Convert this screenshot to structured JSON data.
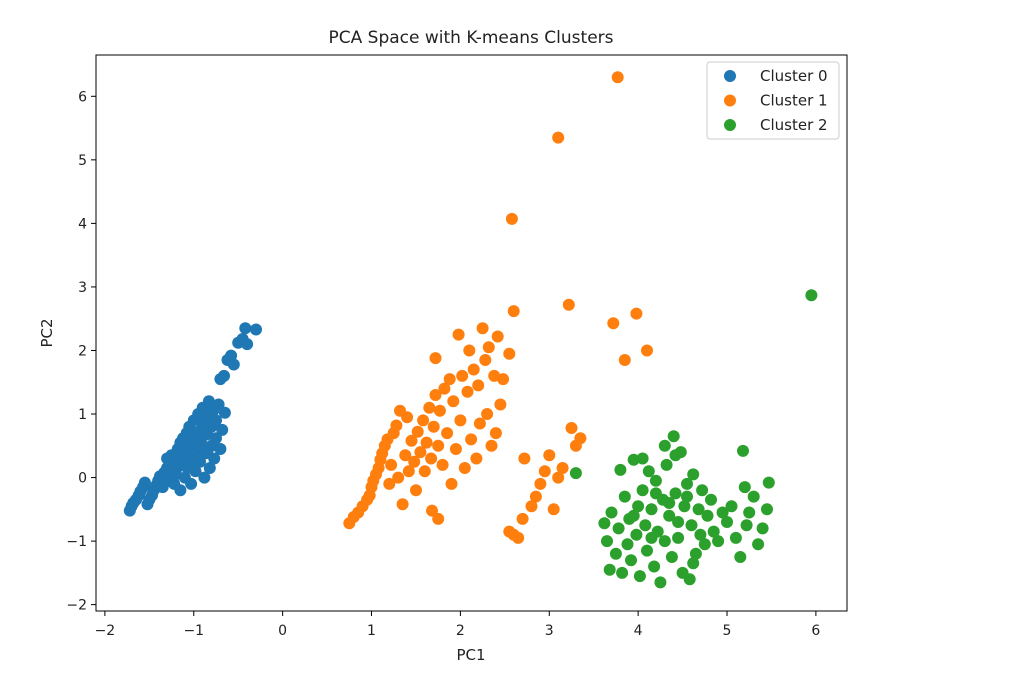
{
  "chart_data": {
    "type": "scatter",
    "title": "PCA Space with K-means Clusters",
    "xlabel": "PC1",
    "ylabel": "PC2",
    "xlim": [
      -2.1,
      6.35
    ],
    "ylim": [
      -2.1,
      6.65
    ],
    "xticks": [
      -2,
      -1,
      0,
      1,
      2,
      3,
      4,
      5,
      6
    ],
    "yticks": [
      -2,
      -1,
      0,
      1,
      2,
      3,
      4,
      5,
      6
    ],
    "xtick_labels": [
      "−2",
      "−1",
      "0",
      "1",
      "2",
      "3",
      "4",
      "5",
      "6"
    ],
    "ytick_labels": [
      "−2",
      "−1",
      "0",
      "1",
      "2",
      "3",
      "4",
      "5",
      "6"
    ],
    "grid": false,
    "legend_position": "top-right",
    "series": [
      {
        "name": "Cluster 0",
        "color": "#1f77b4",
        "points": [
          [
            -1.72,
            -0.52
          ],
          [
            -1.7,
            -0.45
          ],
          [
            -1.68,
            -0.4
          ],
          [
            -1.65,
            -0.35
          ],
          [
            -1.62,
            -0.28
          ],
          [
            -1.6,
            -0.22
          ],
          [
            -1.57,
            -0.15
          ],
          [
            -1.55,
            -0.08
          ],
          [
            -1.52,
            -0.42
          ],
          [
            -1.5,
            -0.35
          ],
          [
            -1.47,
            -0.28
          ],
          [
            -1.45,
            -0.2
          ],
          [
            -1.42,
            -0.12
          ],
          [
            -1.4,
            -0.05
          ],
          [
            -1.38,
            0.02
          ],
          [
            -1.35,
            -0.15
          ],
          [
            -1.33,
            0.08
          ],
          [
            -1.3,
            0.15
          ],
          [
            -1.28,
            -0.05
          ],
          [
            -1.27,
            0.22
          ],
          [
            -1.25,
            0.1
          ],
          [
            -1.23,
            0.3
          ],
          [
            -1.22,
            -0.1
          ],
          [
            -1.2,
            0.38
          ],
          [
            -1.2,
            0.05
          ],
          [
            -1.18,
            0.45
          ],
          [
            -1.17,
            0.18
          ],
          [
            -1.15,
            0.55
          ],
          [
            -1.15,
            -0.2
          ],
          [
            -1.13,
            0.28
          ],
          [
            -1.12,
            0.62
          ],
          [
            -1.1,
            0.0
          ],
          [
            -1.1,
            0.4
          ],
          [
            -1.08,
            0.7
          ],
          [
            -1.07,
            0.15
          ],
          [
            -1.05,
            0.5
          ],
          [
            -1.05,
            0.8
          ],
          [
            -1.03,
            -0.1
          ],
          [
            -1.02,
            0.3
          ],
          [
            -1.0,
            0.6
          ],
          [
            -1.0,
            0.9
          ],
          [
            -0.98,
            0.1
          ],
          [
            -0.97,
            0.45
          ],
          [
            -0.95,
            0.72
          ],
          [
            -0.95,
            1.0
          ],
          [
            -0.93,
            0.25
          ],
          [
            -0.92,
            0.55
          ],
          [
            -0.9,
            0.85
          ],
          [
            -0.9,
            1.1
          ],
          [
            -0.88,
            0.0
          ],
          [
            -0.87,
            0.38
          ],
          [
            -0.85,
            0.68
          ],
          [
            -0.85,
            0.95
          ],
          [
            -0.83,
            1.2
          ],
          [
            -0.82,
            0.15
          ],
          [
            -0.8,
            0.5
          ],
          [
            -0.8,
            0.8
          ],
          [
            -0.78,
            1.05
          ],
          [
            -0.77,
            0.3
          ],
          [
            -0.75,
            0.62
          ],
          [
            -0.75,
            0.9
          ],
          [
            -0.72,
            1.15
          ],
          [
            -0.7,
            0.45
          ],
          [
            -0.68,
            0.75
          ],
          [
            -0.65,
            1.02
          ],
          [
            -0.7,
            1.55
          ],
          [
            -0.66,
            1.6
          ],
          [
            -0.62,
            1.85
          ],
          [
            -0.58,
            1.92
          ],
          [
            -0.55,
            1.78
          ],
          [
            -0.5,
            2.12
          ],
          [
            -0.45,
            2.18
          ],
          [
            -0.42,
            2.35
          ],
          [
            -0.4,
            2.1
          ],
          [
            -0.3,
            2.33
          ],
          [
            -1.25,
            0.35
          ],
          [
            -1.15,
            0.25
          ],
          [
            -1.05,
            0.2
          ],
          [
            -0.95,
            0.5
          ],
          [
            -1.0,
            0.35
          ],
          [
            -1.1,
            0.6
          ],
          [
            -0.9,
            0.65
          ],
          [
            -1.2,
            0.2
          ],
          [
            -1.3,
            0.3
          ],
          [
            -0.85,
            0.4
          ]
        ]
      },
      {
        "name": "Cluster 1",
        "color": "#ff7f0e",
        "points": [
          [
            0.75,
            -0.72
          ],
          [
            0.8,
            -0.62
          ],
          [
            0.85,
            -0.55
          ],
          [
            0.9,
            -0.45
          ],
          [
            0.95,
            -0.35
          ],
          [
            0.98,
            -0.28
          ],
          [
            1.0,
            -0.15
          ],
          [
            1.02,
            -0.05
          ],
          [
            1.05,
            0.05
          ],
          [
            1.08,
            0.15
          ],
          [
            1.1,
            0.28
          ],
          [
            1.12,
            0.38
          ],
          [
            1.15,
            0.5
          ],
          [
            1.18,
            0.6
          ],
          [
            1.2,
            -0.1
          ],
          [
            1.22,
            0.2
          ],
          [
            1.25,
            0.7
          ],
          [
            1.28,
            0.82
          ],
          [
            1.3,
            0.0
          ],
          [
            1.32,
            1.05
          ],
          [
            1.35,
            -0.42
          ],
          [
            1.38,
            0.35
          ],
          [
            1.4,
            0.95
          ],
          [
            1.42,
            0.1
          ],
          [
            1.45,
            0.58
          ],
          [
            1.48,
            0.25
          ],
          [
            1.5,
            -0.2
          ],
          [
            1.52,
            0.72
          ],
          [
            1.55,
            0.4
          ],
          [
            1.58,
            0.9
          ],
          [
            1.6,
            0.1
          ],
          [
            1.62,
            0.55
          ],
          [
            1.65,
            1.1
          ],
          [
            1.67,
            0.3
          ],
          [
            1.68,
            -0.52
          ],
          [
            1.7,
            0.8
          ],
          [
            1.72,
            1.3
          ],
          [
            1.75,
            -0.65
          ],
          [
            1.75,
            0.5
          ],
          [
            1.77,
            1.05
          ],
          [
            1.8,
            0.2
          ],
          [
            1.82,
            1.4
          ],
          [
            1.85,
            0.7
          ],
          [
            1.88,
            1.55
          ],
          [
            1.9,
            -0.1
          ],
          [
            1.92,
            1.2
          ],
          [
            1.95,
            0.45
          ],
          [
            1.98,
            2.25
          ],
          [
            2.0,
            0.9
          ],
          [
            2.02,
            1.6
          ],
          [
            2.05,
            0.15
          ],
          [
            2.08,
            1.35
          ],
          [
            2.1,
            2.0
          ],
          [
            2.12,
            0.6
          ],
          [
            2.15,
            1.7
          ],
          [
            2.18,
            0.3
          ],
          [
            2.2,
            1.45
          ],
          [
            2.22,
            0.85
          ],
          [
            2.25,
            2.35
          ],
          [
            2.28,
            1.85
          ],
          [
            2.3,
            1.0
          ],
          [
            2.32,
            2.05
          ],
          [
            2.35,
            0.5
          ],
          [
            2.38,
            1.6
          ],
          [
            2.4,
            0.7
          ],
          [
            2.42,
            2.22
          ],
          [
            2.45,
            1.15
          ],
          [
            2.48,
            1.55
          ],
          [
            2.55,
            1.95
          ],
          [
            2.6,
            2.62
          ],
          [
            1.72,
            1.88
          ],
          [
            2.58,
            4.07
          ],
          [
            3.1,
            5.35
          ],
          [
            3.77,
            6.3
          ],
          [
            3.22,
            2.72
          ],
          [
            3.72,
            2.43
          ],
          [
            3.98,
            2.58
          ],
          [
            4.1,
            2.0
          ],
          [
            3.85,
            1.85
          ],
          [
            2.55,
            -0.85
          ],
          [
            2.6,
            -0.9
          ],
          [
            2.7,
            -0.65
          ],
          [
            2.8,
            -0.45
          ],
          [
            2.85,
            -0.3
          ],
          [
            2.9,
            -0.1
          ],
          [
            2.95,
            0.1
          ],
          [
            3.0,
            0.35
          ],
          [
            3.05,
            -0.5
          ],
          [
            3.1,
            0.0
          ],
          [
            3.15,
            0.15
          ],
          [
            3.25,
            0.78
          ],
          [
            3.3,
            0.5
          ],
          [
            3.35,
            0.62
          ],
          [
            2.72,
            0.3
          ],
          [
            2.65,
            -0.95
          ]
        ]
      },
      {
        "name": "Cluster 2",
        "color": "#2ca02c",
        "points": [
          [
            5.95,
            2.87
          ],
          [
            3.3,
            0.07
          ],
          [
            3.62,
            -0.72
          ],
          [
            3.65,
            -1.0
          ],
          [
            3.68,
            -1.45
          ],
          [
            3.7,
            -0.55
          ],
          [
            3.75,
            -1.2
          ],
          [
            3.78,
            -0.8
          ],
          [
            3.8,
            0.12
          ],
          [
            3.82,
            -1.5
          ],
          [
            3.85,
            -0.3
          ],
          [
            3.88,
            -1.05
          ],
          [
            3.9,
            -0.65
          ],
          [
            3.92,
            -1.3
          ],
          [
            3.95,
            0.28
          ],
          [
            3.98,
            -0.9
          ],
          [
            4.0,
            -0.45
          ],
          [
            4.02,
            -1.55
          ],
          [
            4.05,
            -0.2
          ],
          [
            4.08,
            -0.75
          ],
          [
            4.1,
            -1.15
          ],
          [
            4.12,
            0.1
          ],
          [
            4.15,
            -0.5
          ],
          [
            4.18,
            -1.4
          ],
          [
            4.2,
            -0.05
          ],
          [
            4.22,
            -0.85
          ],
          [
            4.25,
            -1.65
          ],
          [
            4.28,
            -0.35
          ],
          [
            4.3,
            -1.0
          ],
          [
            4.32,
            0.2
          ],
          [
            4.35,
            -0.6
          ],
          [
            4.38,
            -1.25
          ],
          [
            4.4,
            0.65
          ],
          [
            4.42,
            -0.25
          ],
          [
            4.45,
            -0.95
          ],
          [
            4.48,
            0.4
          ],
          [
            4.5,
            -1.5
          ],
          [
            4.52,
            -0.45
          ],
          [
            4.55,
            -0.1
          ],
          [
            4.58,
            -1.6
          ],
          [
            4.6,
            -0.75
          ],
          [
            4.62,
            0.05
          ],
          [
            4.65,
            -1.2
          ],
          [
            4.68,
            -0.5
          ],
          [
            4.7,
            -0.9
          ],
          [
            4.72,
            -0.2
          ],
          [
            4.75,
            -1.05
          ],
          [
            4.78,
            -0.6
          ],
          [
            4.82,
            -0.35
          ],
          [
            4.85,
            -0.85
          ],
          [
            4.9,
            -1.0
          ],
          [
            4.95,
            -0.55
          ],
          [
            5.0,
            -0.7
          ],
          [
            5.05,
            -0.45
          ],
          [
            5.1,
            -0.95
          ],
          [
            5.15,
            -1.25
          ],
          [
            5.18,
            0.42
          ],
          [
            5.2,
            -0.15
          ],
          [
            5.22,
            -0.75
          ],
          [
            5.25,
            -0.55
          ],
          [
            5.3,
            -0.3
          ],
          [
            5.35,
            -1.05
          ],
          [
            5.4,
            -0.8
          ],
          [
            5.45,
            -0.5
          ],
          [
            5.47,
            -0.08
          ],
          [
            4.3,
            0.5
          ],
          [
            4.42,
            0.35
          ],
          [
            4.05,
            0.3
          ],
          [
            4.2,
            -0.25
          ],
          [
            4.35,
            -0.4
          ],
          [
            4.55,
            -0.3
          ],
          [
            4.15,
            -0.95
          ],
          [
            3.95,
            -0.6
          ],
          [
            4.45,
            -0.7
          ],
          [
            4.62,
            -1.35
          ]
        ]
      }
    ]
  }
}
